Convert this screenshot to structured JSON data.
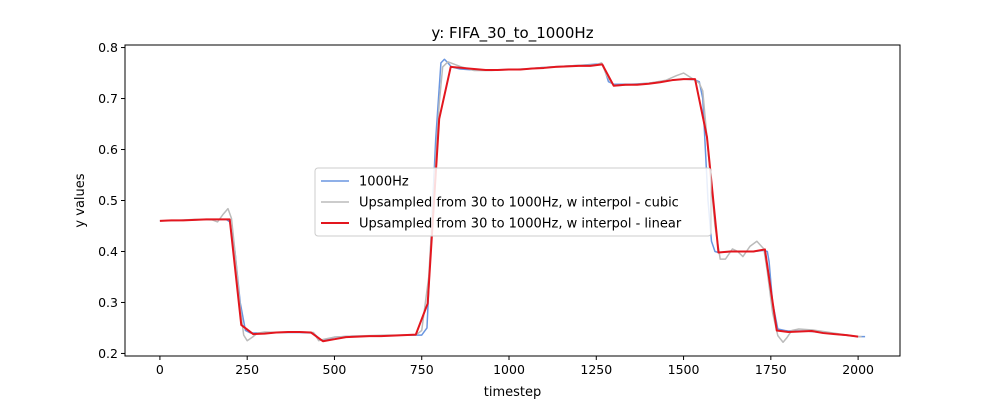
{
  "chart_data": {
    "type": "line",
    "title": "y: FIFA_30_to_1000Hz",
    "xlabel": "timestep",
    "ylabel": "y values",
    "xlim": [
      -100,
      2120
    ],
    "ylim": [
      0.195,
      0.805
    ],
    "xticks": [
      0,
      250,
      500,
      750,
      1000,
      1250,
      1500,
      1750,
      2000
    ],
    "yticks": [
      0.2,
      0.3,
      0.4,
      0.5,
      0.6,
      0.7,
      0.8
    ],
    "xtick_labels": [
      "0",
      "250",
      "500",
      "750",
      "1000",
      "1250",
      "1500",
      "1750",
      "2000"
    ],
    "ytick_labels": [
      "0.2",
      "0.3",
      "0.4",
      "0.5",
      "0.6",
      "0.7",
      "0.8"
    ],
    "grid": false,
    "legend_position": "center",
    "series": [
      {
        "name": "1000Hz",
        "color": "#6a96e0",
        "linewidth": 1.5,
        "x": [
          0,
          50,
          100,
          150,
          190,
          200,
          215,
          230,
          245,
          260,
          300,
          350,
          400,
          440,
          460,
          475,
          500,
          550,
          600,
          650,
          700,
          735,
          750,
          765,
          775,
          790,
          805,
          815,
          825,
          835,
          860,
          900,
          950,
          1000,
          1050,
          1100,
          1150,
          1200,
          1260,
          1270,
          1285,
          1300,
          1350,
          1400,
          1450,
          1500,
          1530,
          1545,
          1555,
          1570,
          1580,
          1590,
          1600,
          1620,
          1650,
          1700,
          1730,
          1740,
          1745,
          1755,
          1770,
          1790,
          1800,
          1850,
          1900,
          1950,
          2000,
          2020
        ],
        "y": [
          0.46,
          0.461,
          0.462,
          0.463,
          0.463,
          0.458,
          0.4,
          0.3,
          0.245,
          0.24,
          0.24,
          0.241,
          0.241,
          0.24,
          0.226,
          0.226,
          0.232,
          0.234,
          0.234,
          0.235,
          0.236,
          0.236,
          0.236,
          0.25,
          0.4,
          0.62,
          0.77,
          0.777,
          0.77,
          0.762,
          0.758,
          0.756,
          0.756,
          0.757,
          0.758,
          0.761,
          0.763,
          0.765,
          0.768,
          0.765,
          0.733,
          0.728,
          0.728,
          0.73,
          0.735,
          0.738,
          0.737,
          0.733,
          0.7,
          0.5,
          0.42,
          0.4,
          0.398,
          0.399,
          0.4,
          0.4,
          0.402,
          0.4,
          0.38,
          0.3,
          0.248,
          0.245,
          0.244,
          0.244,
          0.241,
          0.237,
          0.233,
          0.233
        ]
      },
      {
        "name": "Upsampled from 30 to 1000Hz, w interpol - cubic",
        "color": "#bbbbbb",
        "linewidth": 1.5,
        "x": [
          0,
          50,
          100,
          150,
          165,
          180,
          195,
          205,
          215,
          230,
          240,
          250,
          265,
          280,
          300,
          350,
          400,
          440,
          455,
          470,
          500,
          550,
          600,
          650,
          700,
          735,
          750,
          770,
          785,
          800,
          810,
          825,
          860,
          900,
          950,
          1000,
          1050,
          1100,
          1150,
          1200,
          1250,
          1265,
          1280,
          1300,
          1350,
          1400,
          1450,
          1480,
          1500,
          1530,
          1545,
          1555,
          1570,
          1590,
          1605,
          1620,
          1640,
          1655,
          1670,
          1690,
          1710,
          1730,
          1740,
          1755,
          1770,
          1785,
          1795,
          1810,
          1830,
          1870,
          1900,
          1950,
          2000,
          2010
        ],
        "y": [
          0.46,
          0.461,
          0.463,
          0.462,
          0.458,
          0.472,
          0.484,
          0.465,
          0.4,
          0.29,
          0.236,
          0.225,
          0.232,
          0.24,
          0.242,
          0.241,
          0.242,
          0.241,
          0.225,
          0.228,
          0.232,
          0.234,
          0.235,
          0.236,
          0.236,
          0.237,
          0.245,
          0.35,
          0.52,
          0.69,
          0.762,
          0.772,
          0.763,
          0.755,
          0.755,
          0.757,
          0.758,
          0.761,
          0.763,
          0.765,
          0.766,
          0.77,
          0.745,
          0.725,
          0.727,
          0.73,
          0.736,
          0.745,
          0.75,
          0.737,
          0.73,
          0.715,
          0.6,
          0.45,
          0.385,
          0.385,
          0.405,
          0.4,
          0.39,
          0.41,
          0.42,
          0.405,
          0.36,
          0.28,
          0.235,
          0.222,
          0.23,
          0.245,
          0.248,
          0.246,
          0.243,
          0.238,
          0.233,
          0.233
        ]
      },
      {
        "name": "Upsampled from 30 to 1000Hz, w interpol - linear",
        "color": "#e3161e",
        "linewidth": 2,
        "x": [
          0,
          33,
          67,
          100,
          133,
          167,
          200,
          233,
          267,
          300,
          333,
          367,
          400,
          433,
          467,
          500,
          533,
          567,
          600,
          633,
          667,
          700,
          733,
          767,
          800,
          833,
          867,
          900,
          933,
          967,
          1000,
          1033,
          1067,
          1100,
          1133,
          1167,
          1200,
          1233,
          1267,
          1300,
          1333,
          1367,
          1400,
          1433,
          1467,
          1500,
          1533,
          1567,
          1600,
          1633,
          1667,
          1700,
          1733,
          1767,
          1800,
          1833,
          1867,
          1900,
          1933,
          1967,
          2000
        ],
        "y": [
          0.46,
          0.461,
          0.461,
          0.462,
          0.463,
          0.463,
          0.463,
          0.256,
          0.238,
          0.239,
          0.241,
          0.242,
          0.242,
          0.241,
          0.224,
          0.228,
          0.232,
          0.233,
          0.234,
          0.234,
          0.235,
          0.236,
          0.237,
          0.298,
          0.66,
          0.762,
          0.76,
          0.758,
          0.756,
          0.756,
          0.757,
          0.757,
          0.759,
          0.76,
          0.762,
          0.763,
          0.764,
          0.764,
          0.767,
          0.725,
          0.727,
          0.727,
          0.729,
          0.732,
          0.736,
          0.738,
          0.738,
          0.625,
          0.398,
          0.4,
          0.4,
          0.4,
          0.404,
          0.245,
          0.242,
          0.243,
          0.244,
          0.24,
          0.238,
          0.236,
          0.233
        ]
      }
    ]
  }
}
